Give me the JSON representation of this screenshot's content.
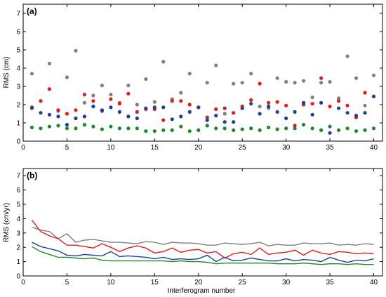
{
  "chart_data": [
    {
      "type": "scatter",
      "panel_label": "(a)",
      "xlabel": "",
      "ylabel": "RMS (cm)",
      "xlim": [
        0,
        41
      ],
      "ylim": [
        0,
        7.5
      ],
      "xticks": [
        0,
        5,
        10,
        15,
        20,
        25,
        30,
        35,
        40
      ],
      "yticks": [
        0,
        1,
        2,
        3,
        4,
        5,
        6,
        7
      ],
      "grid": false,
      "x": [
        1,
        2,
        3,
        4,
        5,
        6,
        7,
        8,
        9,
        10,
        11,
        12,
        13,
        14,
        15,
        16,
        17,
        18,
        19,
        20,
        21,
        22,
        23,
        24,
        25,
        26,
        27,
        28,
        29,
        30,
        31,
        32,
        33,
        34,
        35,
        36,
        37,
        38,
        39,
        40
      ],
      "series": [
        {
          "color": "#808080",
          "values": [
            3.7,
            2.2,
            4.25,
            1.65,
            3.5,
            4.95,
            2.1,
            2.5,
            3.05,
            2.55,
            2.1,
            3.05,
            2.0,
            3.4,
            2.15,
            4.35,
            2.3,
            2.65,
            3.7,
            1.85,
            3.2,
            4.15,
            1.5,
            3.15,
            3.2,
            3.7,
            1.9,
            1.8,
            3.45,
            3.25,
            3.2,
            3.3,
            2.4,
            3.2,
            3.25,
            2.35,
            4.65,
            3.45,
            1.95,
            3.6
          ]
        },
        {
          "color": "#e31a1c",
          "values": [
            1.8,
            2.2,
            2.85,
            1.7,
            1.5,
            1.7,
            2.55,
            2.2,
            1.65,
            2.3,
            2.05,
            2.6,
            1.6,
            1.75,
            1.75,
            1.15,
            2.2,
            2.2,
            2.0,
            1.85,
            1.3,
            1.75,
            1.8,
            1.55,
            1.9,
            2.25,
            3.15,
            2.1,
            2.15,
            1.95,
            0.85,
            2.0,
            2.05,
            3.45,
            1.9,
            2.2,
            1.95,
            1.3,
            2.65,
            2.45
          ]
        },
        {
          "color": "#1f3f99",
          "values": [
            1.85,
            1.55,
            1.45,
            1.35,
            0.9,
            1.25,
            1.35,
            1.9,
            1.7,
            1.85,
            1.6,
            1.35,
            1.25,
            1.8,
            1.85,
            1.85,
            1.2,
            1.35,
            1.6,
            1.85,
            1.15,
            1.4,
            1.05,
            1.05,
            1.8,
            2.05,
            1.5,
            1.9,
            1.6,
            1.25,
            1.6,
            2.1,
            1.45,
            2.1,
            0.45,
            1.8,
            1.55,
            1.4,
            1.55,
            2.45
          ]
        },
        {
          "color": "#1a8a2a",
          "values": [
            0.75,
            0.7,
            0.8,
            0.85,
            0.7,
            0.7,
            0.9,
            0.8,
            0.65,
            0.8,
            0.7,
            0.7,
            0.7,
            0.55,
            0.55,
            0.6,
            0.6,
            0.8,
            0.55,
            0.6,
            0.85,
            0.7,
            0.7,
            0.6,
            0.65,
            0.7,
            0.6,
            0.75,
            0.65,
            0.7,
            0.7,
            0.9,
            0.7,
            0.6,
            0.8,
            0.6,
            0.7,
            0.55,
            0.6,
            0.7
          ]
        }
      ]
    },
    {
      "type": "line",
      "panel_label": "(b)",
      "xlabel": "Interferogram number",
      "ylabel": "RMS (cm/yr)",
      "xlim": [
        0,
        41
      ],
      "ylim": [
        0,
        7.5
      ],
      "xticks": [
        0,
        5,
        10,
        15,
        20,
        25,
        30,
        35,
        40
      ],
      "yticks": [
        0,
        1,
        2,
        3,
        4,
        5,
        6,
        7
      ],
      "grid": false,
      "x": [
        1,
        2,
        3,
        4,
        5,
        6,
        7,
        8,
        9,
        10,
        11,
        12,
        13,
        14,
        15,
        16,
        17,
        18,
        19,
        20,
        21,
        22,
        23,
        24,
        25,
        26,
        27,
        28,
        29,
        30,
        31,
        32,
        33,
        34,
        35,
        36,
        37,
        38,
        39,
        40
      ],
      "series": [
        {
          "color": "#808080",
          "values": [
            3.4,
            3.2,
            3.1,
            2.6,
            2.95,
            2.35,
            2.5,
            2.55,
            2.45,
            2.35,
            2.35,
            2.3,
            2.25,
            2.4,
            2.35,
            2.2,
            2.35,
            2.3,
            2.3,
            2.25,
            2.15,
            2.15,
            2.3,
            2.25,
            2.2,
            2.25,
            2.35,
            2.1,
            2.2,
            2.15,
            2.15,
            2.3,
            2.25,
            2.25,
            2.3,
            2.15,
            2.2,
            2.15,
            2.25,
            2.2
          ]
        },
        {
          "color": "#e31a1c",
          "values": [
            3.9,
            3.1,
            2.8,
            2.6,
            2.15,
            2.15,
            2.05,
            1.95,
            2.25,
            2.0,
            1.7,
            1.95,
            2.1,
            1.95,
            1.6,
            1.7,
            1.95,
            1.65,
            1.8,
            1.85,
            1.6,
            1.7,
            1.25,
            1.55,
            1.65,
            1.5,
            1.95,
            1.5,
            1.6,
            1.65,
            1.8,
            1.45,
            1.8,
            1.6,
            1.5,
            1.7,
            1.65,
            1.55,
            1.6,
            1.55
          ]
        },
        {
          "color": "#1f3f99",
          "values": [
            2.35,
            2.05,
            1.9,
            1.75,
            1.45,
            1.4,
            1.5,
            1.45,
            1.4,
            1.7,
            1.35,
            1.4,
            1.35,
            1.3,
            1.2,
            1.3,
            1.15,
            1.2,
            1.15,
            1.2,
            1.45,
            1.0,
            1.3,
            1.05,
            1.1,
            1.25,
            1.15,
            1.05,
            1.05,
            1.2,
            1.05,
            1.15,
            1.1,
            1.0,
            1.3,
            1.1,
            0.95,
            1.1,
            1.05,
            1.2
          ]
        },
        {
          "color": "#1a8a2a",
          "values": [
            2.05,
            1.7,
            1.5,
            1.3,
            1.3,
            1.25,
            1.2,
            1.25,
            1.1,
            1.05,
            1.05,
            1.05,
            1.05,
            1.05,
            1.05,
            1.05,
            1.0,
            1.05,
            1.0,
            1.0,
            0.95,
            0.85,
            0.9,
            0.9,
            0.9,
            0.9,
            0.9,
            0.9,
            0.85,
            0.85,
            0.85,
            0.9,
            0.85,
            0.8,
            0.85,
            0.85,
            0.8,
            0.85,
            0.8,
            0.8
          ]
        }
      ]
    }
  ]
}
